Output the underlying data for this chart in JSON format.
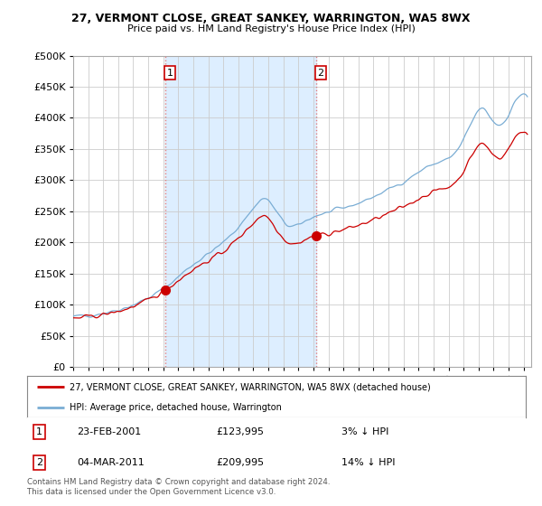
{
  "title1": "27, VERMONT CLOSE, GREAT SANKEY, WARRINGTON, WA5 8WX",
  "title2": "Price paid vs. HM Land Registry's House Price Index (HPI)",
  "legend_line1": "27, VERMONT CLOSE, GREAT SANKEY, WARRINGTON, WA5 8WX (detached house)",
  "legend_line2": "HPI: Average price, detached house, Warrington",
  "annotation1_label": "1",
  "annotation1_date": "23-FEB-2001",
  "annotation1_price": "£123,995",
  "annotation1_hpi": "3% ↓ HPI",
  "annotation2_label": "2",
  "annotation2_date": "04-MAR-2011",
  "annotation2_price": "£209,995",
  "annotation2_hpi": "14% ↓ HPI",
  "footer": "Contains HM Land Registry data © Crown copyright and database right 2024.\nThis data is licensed under the Open Government Licence v3.0.",
  "vline1_x": 2001.15,
  "vline2_x": 2011.18,
  "sale1_x": 2001.15,
  "sale1_y": 123995,
  "sale2_x": 2011.18,
  "sale2_y": 209995,
  "ylim": [
    0,
    500000
  ],
  "xlim_start": 1995.0,
  "xlim_end": 2025.5,
  "hpi_color": "#7aadd4",
  "sale_color": "#cc0000",
  "vline_color": "#e08080",
  "shade_color": "#ddeeff",
  "background_color": "#ffffff",
  "grid_color": "#cccccc"
}
